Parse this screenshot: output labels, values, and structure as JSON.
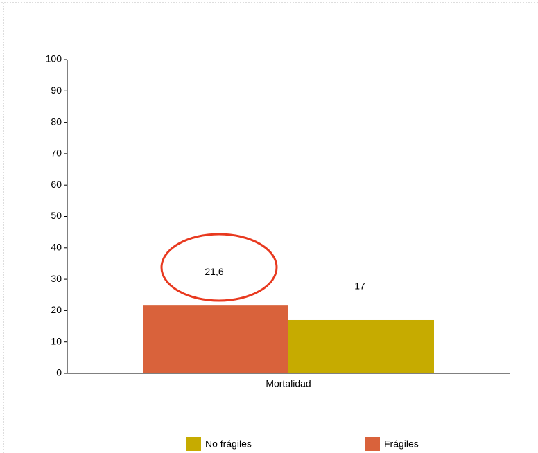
{
  "chart_data": {
    "type": "bar",
    "categories": [
      "Mortalidad"
    ],
    "series": [
      {
        "name": "Frágiles",
        "color": "#d9623b",
        "values": [
          21.6
        ],
        "value_labels": [
          "21,6"
        ]
      },
      {
        "name": "No frágiles",
        "color": "#c6ab00",
        "values": [
          17
        ],
        "value_labels": [
          "17"
        ]
      }
    ],
    "ylim": [
      0,
      100
    ],
    "yticks": [
      0,
      10,
      20,
      30,
      40,
      50,
      60,
      70,
      80,
      90,
      100
    ],
    "grid": false,
    "legend": "bottom"
  }
}
